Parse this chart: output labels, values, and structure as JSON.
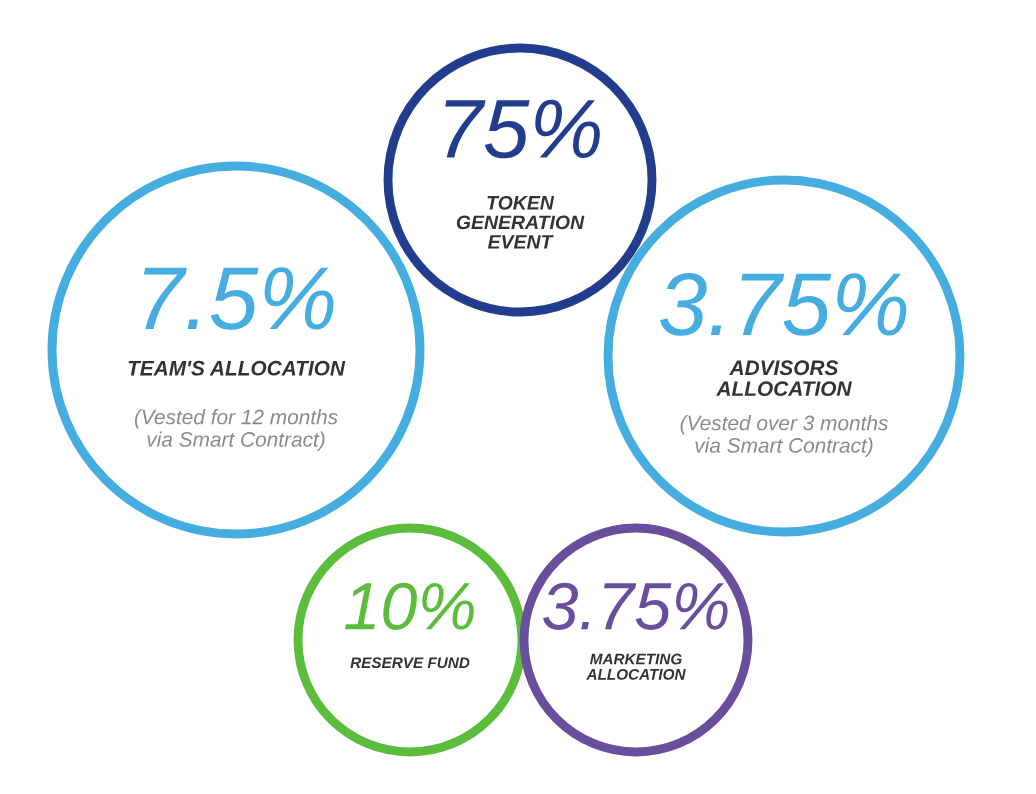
{
  "chart_data": {
    "type": "other",
    "categories": [
      "TOKEN\nGENERATION\nEVENT",
      "TEAM'S ALLOCATION",
      "ADVISORS\nALLOCATION",
      "RESERVE FUND",
      "MARKETING\nALLOCATION"
    ],
    "values": [
      75,
      7.5,
      3.75,
      10,
      3.75
    ],
    "value_labels": [
      "75%",
      "7.5%",
      "3.75%",
      "10%",
      "3.75%"
    ],
    "colors": [
      "#223c8e",
      "#45ade0",
      "#45ade0",
      "#5cbd3c",
      "#6a4e9e"
    ],
    "annotations": [
      "(Vested for 12 months\nvia Smart Contract)",
      "(Vested over 3 months\nvia Smart Contract)"
    ]
  }
}
